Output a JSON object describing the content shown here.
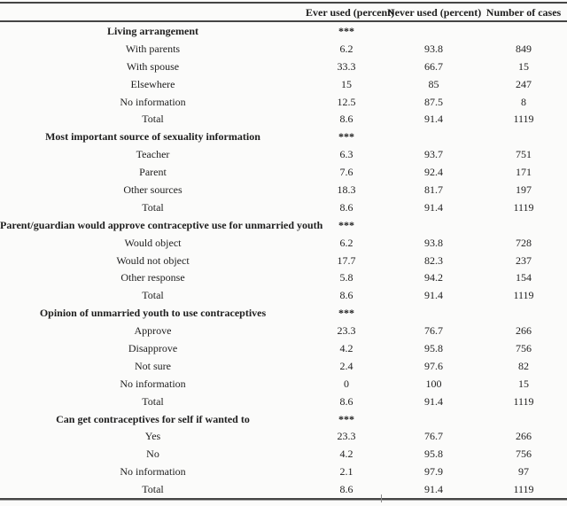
{
  "table": {
    "columns": [
      "",
      "Ever used (percent)",
      "Never used (percent)",
      "Number of cases"
    ],
    "significance_marker": "***",
    "sections": [
      {
        "header": "Living arrangement",
        "significance": "***",
        "rows": [
          {
            "label": "With parents",
            "values": [
              "6.2",
              "93.8",
              "849"
            ]
          },
          {
            "label": "With spouse",
            "values": [
              "33.3",
              "66.7",
              "15"
            ]
          },
          {
            "label": "Elsewhere",
            "values": [
              "15",
              "85",
              "247"
            ]
          },
          {
            "label": "No information",
            "values": [
              "12.5",
              "87.5",
              "8"
            ]
          },
          {
            "label": "Total",
            "values": [
              "8.6",
              "91.4",
              "1119"
            ]
          }
        ]
      },
      {
        "header": "Most important source of sexuality information",
        "significance": "***",
        "rows": [
          {
            "label": "Teacher",
            "values": [
              "6.3",
              "93.7",
              "751"
            ]
          },
          {
            "label": "Parent",
            "values": [
              "7.6",
              "92.4",
              "171"
            ]
          },
          {
            "label": "Other sources",
            "values": [
              "18.3",
              "81.7",
              "197"
            ]
          },
          {
            "label": "Total",
            "values": [
              "8.6",
              "91.4",
              "1119"
            ]
          }
        ]
      },
      {
        "header": "Parent/guardian would approve contraceptive use for unmarried youth",
        "significance": "***",
        "rows": [
          {
            "label": "Would object",
            "values": [
              "6.2",
              "93.8",
              "728"
            ]
          },
          {
            "label": "Would not object",
            "values": [
              "17.7",
              "82.3",
              "237"
            ]
          },
          {
            "label": "Other response",
            "values": [
              "5.8",
              "94.2",
              "154"
            ]
          },
          {
            "label": "Total",
            "values": [
              "8.6",
              "91.4",
              "1119"
            ]
          }
        ]
      },
      {
        "header": "Opinion of unmarried youth to use contraceptives",
        "significance": "***",
        "rows": [
          {
            "label": "Approve",
            "values": [
              "23.3",
              "76.7",
              "266"
            ]
          },
          {
            "label": "Disapprove",
            "values": [
              "4.2",
              "95.8",
              "756"
            ]
          },
          {
            "label": "Not sure",
            "values": [
              "2.4",
              "97.6",
              "82"
            ]
          },
          {
            "label": "No information",
            "values": [
              "0",
              "100",
              "15"
            ]
          },
          {
            "label": "Total",
            "values": [
              "8.6",
              "91.4",
              "1119"
            ]
          }
        ]
      },
      {
        "header": "Can get contraceptives for self if wanted to",
        "significance": "***",
        "rows": [
          {
            "label": "Yes",
            "values": [
              "23.3",
              "76.7",
              "266"
            ]
          },
          {
            "label": "No",
            "values": [
              "4.2",
              "95.8",
              "756"
            ]
          },
          {
            "label": "No information",
            "values": [
              "2.1",
              "97.9",
              "97"
            ]
          },
          {
            "label": "Total",
            "values": [
              "8.6",
              "91.4",
              "1119"
            ]
          }
        ]
      }
    ]
  }
}
